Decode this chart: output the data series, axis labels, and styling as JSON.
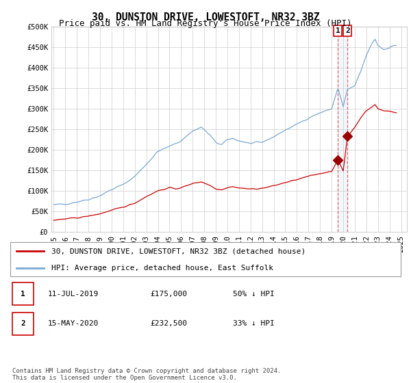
{
  "title": "30, DUNSTON DRIVE, LOWESTOFT, NR32 3BZ",
  "subtitle": "Price paid vs. HM Land Registry's House Price Index (HPI)",
  "ylim": [
    0,
    500000
  ],
  "yticks": [
    0,
    50000,
    100000,
    150000,
    200000,
    250000,
    300000,
    350000,
    400000,
    450000,
    500000
  ],
  "ytick_labels": [
    "£0",
    "£50K",
    "£100K",
    "£150K",
    "£200K",
    "£250K",
    "£300K",
    "£350K",
    "£400K",
    "£450K",
    "£500K"
  ],
  "xlim_start": 1994.8,
  "xlim_end": 2025.5,
  "xticks": [
    1995,
    1996,
    1997,
    1998,
    1999,
    2000,
    2001,
    2002,
    2003,
    2004,
    2005,
    2006,
    2007,
    2008,
    2009,
    2010,
    2011,
    2012,
    2013,
    2014,
    2015,
    2016,
    2017,
    2018,
    2019,
    2020,
    2021,
    2022,
    2023,
    2024,
    2025
  ],
  "marker1_x": 2019.54,
  "marker1_y": 175000,
  "marker2_x": 2020.37,
  "marker2_y": 232500,
  "line_color_hpi": "#7aa7d4",
  "line_color_price": "#cc0000",
  "marker_color": "#990000",
  "bg_color": "#ffffff",
  "grid_color": "#cccccc",
  "legend_label_price": "30, DUNSTON DRIVE, LOWESTOFT, NR32 3BZ (detached house)",
  "legend_label_hpi": "HPI: Average price, detached house, East Suffolk",
  "table_row1_num": "1",
  "table_row1_date": "11-JUL-2019",
  "table_row1_price": "£175,000",
  "table_row1_hpi": "50% ↓ HPI",
  "table_row2_num": "2",
  "table_row2_date": "15-MAY-2020",
  "table_row2_price": "£232,500",
  "table_row2_hpi": "33% ↓ HPI",
  "footnote": "Contains HM Land Registry data © Crown copyright and database right 2024.\nThis data is licensed under the Open Government Licence v3.0.",
  "title_fontsize": 10.5,
  "subtitle_fontsize": 9,
  "tick_fontsize": 7.5,
  "legend_fontsize": 8,
  "table_fontsize": 8,
  "footnote_fontsize": 6.5
}
